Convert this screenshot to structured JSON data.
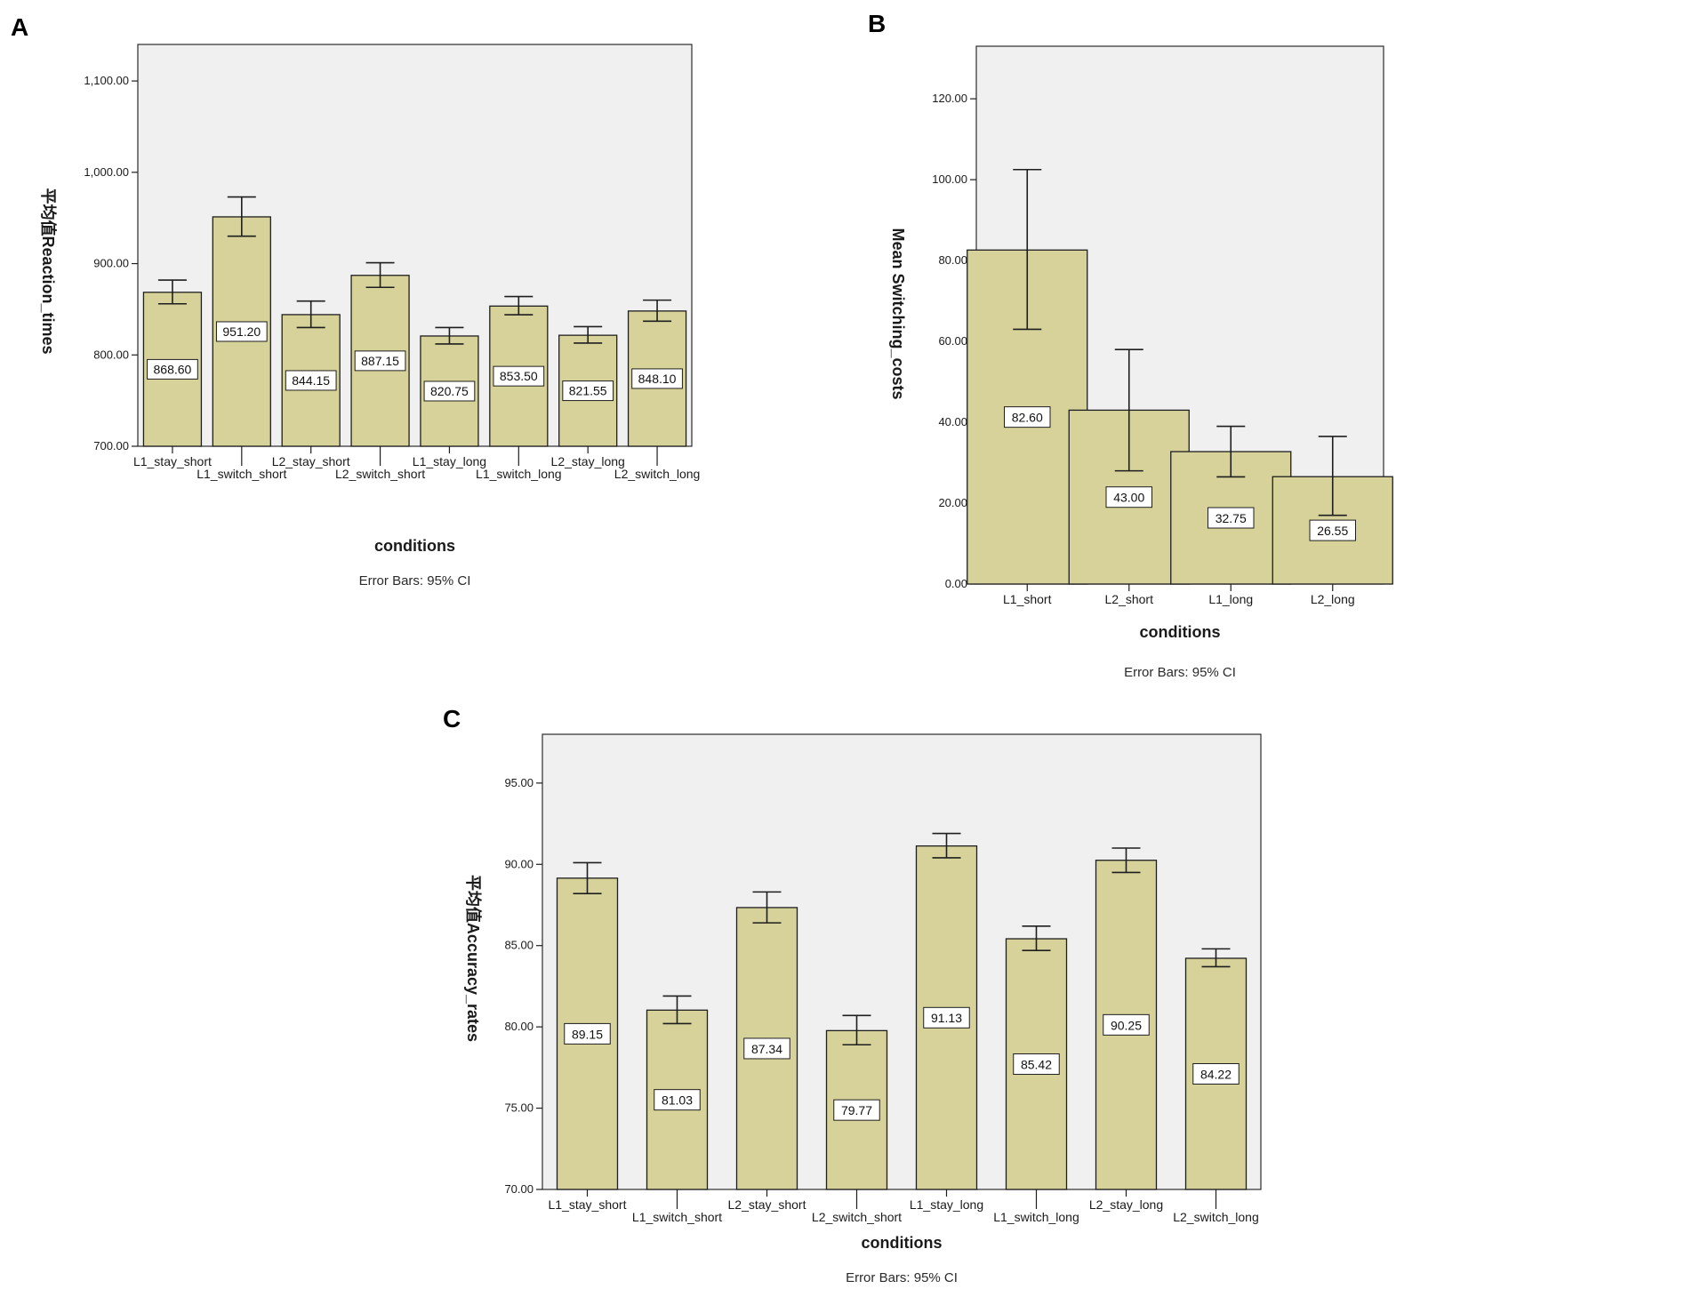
{
  "colors": {
    "bar": "#d6d29a",
    "plot_bg": "#f0f0f0"
  },
  "chart_data": [
    {
      "panel": "A",
      "type": "bar",
      "categories": [
        "L1_stay_short",
        "L1_switch_short",
        "L2_stay_short",
        "L2_switch_short",
        "L1_stay_long",
        "L1_switch_long",
        "L2_stay_long",
        "L2_switch_long"
      ],
      "values": [
        868.6,
        951.2,
        844.15,
        887.15,
        820.75,
        853.5,
        821.55,
        848.1
      ],
      "value_labels": [
        "868.60",
        "951.20",
        "844.15",
        "887.15",
        "820.75",
        "853.50",
        "821.55",
        "848.10"
      ],
      "ci_low": [
        856,
        930,
        830,
        874,
        812,
        844,
        813,
        837
      ],
      "ci_high": [
        882,
        973,
        859,
        901,
        830,
        864,
        831,
        860
      ],
      "ylim": [
        700,
        1140
      ],
      "yticks": [
        700,
        800,
        900,
        1000,
        1100
      ],
      "ytick_labels": [
        "700.00",
        "800.00",
        "900.00",
        "1,000.00",
        "1,100.00"
      ],
      "xlabel": "conditions",
      "ylabel": "平均值Reaction_times",
      "note": "Error Bars: 95% CI"
    },
    {
      "panel": "B",
      "type": "bar",
      "categories": [
        "L1_short",
        "L2_short",
        "L1_long",
        "L2_long"
      ],
      "values": [
        82.6,
        43.0,
        32.75,
        26.55
      ],
      "value_labels": [
        "82.60",
        "43.00",
        "32.75",
        "26.55"
      ],
      "ci_low": [
        63,
        28,
        26.5,
        17
      ],
      "ci_high": [
        102.5,
        58,
        39,
        36.5
      ],
      "ylim": [
        0,
        133
      ],
      "yticks": [
        0,
        20,
        40,
        60,
        80,
        100,
        120
      ],
      "ytick_labels": [
        "0.00",
        "20.00",
        "40.00",
        "60.00",
        "80.00",
        "100.00",
        "120.00"
      ],
      "xlabel": "conditions",
      "ylabel": "Mean Switching_costs",
      "note": "Error Bars: 95% CI"
    },
    {
      "panel": "C",
      "type": "bar",
      "categories": [
        "L1_stay_short",
        "L1_switch_short",
        "L2_stay_short",
        "L2_switch_short",
        "L1_stay_long",
        "L1_switch_long",
        "L2_stay_long",
        "L2_switch_long"
      ],
      "values": [
        89.15,
        81.03,
        87.34,
        79.77,
        91.13,
        85.42,
        90.25,
        84.22
      ],
      "value_labels": [
        "89.15",
        "81.03",
        "87.34",
        "79.77",
        "91.13",
        "85.42",
        "90.25",
        "84.22"
      ],
      "ci_low": [
        88.2,
        80.2,
        86.4,
        78.9,
        90.4,
        84.7,
        89.5,
        83.7
      ],
      "ci_high": [
        90.1,
        81.9,
        88.3,
        80.7,
        91.9,
        86.2,
        91.0,
        84.8
      ],
      "ylim": [
        70,
        98
      ],
      "yticks": [
        70,
        75,
        80,
        85,
        90,
        95
      ],
      "ytick_labels": [
        "70.00",
        "75.00",
        "80.00",
        "85.00",
        "90.00",
        "95.00"
      ],
      "xlabel": "conditions",
      "ylabel": "平均值Accuracy_rates",
      "note": "Error Bars: 95% CI"
    }
  ]
}
